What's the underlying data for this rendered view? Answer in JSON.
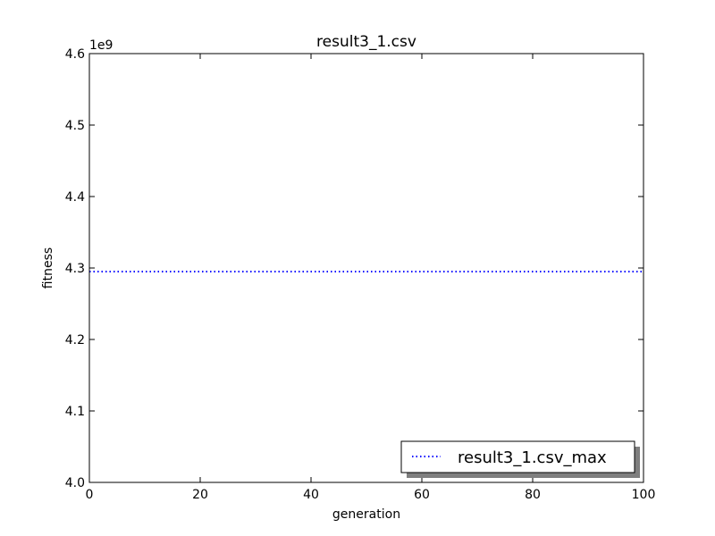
{
  "chart_data": {
    "type": "line",
    "title": "result3_1.csv",
    "xlabel": "generation",
    "ylabel": "fitness",
    "y_offset_label": "1e9",
    "xlim": [
      0,
      100
    ],
    "ylim": [
      4.0,
      4.6
    ],
    "x_ticks": [
      0,
      20,
      40,
      60,
      80,
      100
    ],
    "x_tick_labels": [
      "0",
      "20",
      "40",
      "60",
      "80",
      "100"
    ],
    "y_ticks": [
      4.0,
      4.1,
      4.2,
      4.3,
      4.4,
      4.5,
      4.6
    ],
    "y_tick_labels": [
      "4.0",
      "4.1",
      "4.2",
      "4.3",
      "4.4",
      "4.5",
      "4.6"
    ],
    "grid": false,
    "legend_position": "lower-right",
    "series": [
      {
        "name": "result3_1.csv_max",
        "color": "#0000ff",
        "line_style": "dotted",
        "x": [
          0,
          100
        ],
        "y": [
          4.295,
          4.295
        ]
      }
    ]
  }
}
